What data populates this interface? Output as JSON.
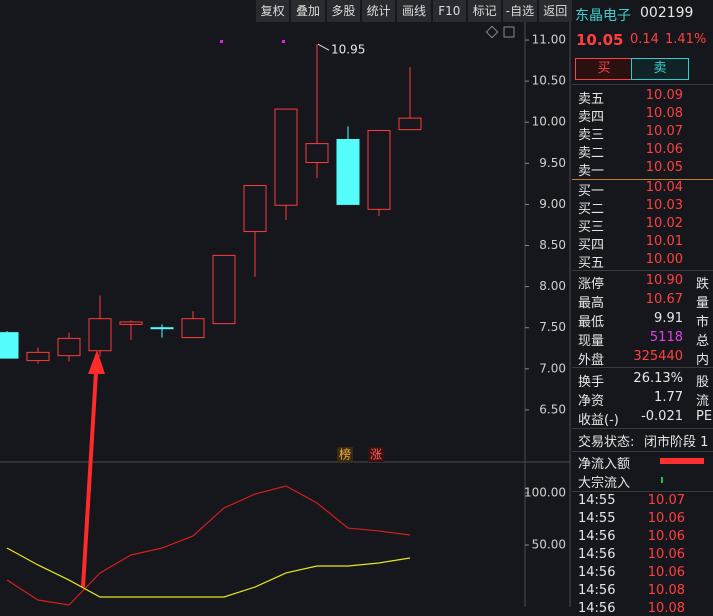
{
  "toolbar": [
    "复权",
    "叠加",
    "多股",
    "统计",
    "画线",
    "F10",
    "标记",
    "-自选",
    "返回"
  ],
  "chart_data": [
    {
      "type": "candlestick",
      "open": [
        7.44,
        7.1,
        7.16,
        7.22,
        7.54,
        7.5,
        7.38,
        7.55,
        8.67,
        8.99,
        9.51,
        9.79,
        8.94,
        9.91
      ],
      "close": [
        7.13,
        7.2,
        7.37,
        7.61,
        7.57,
        7.5,
        7.61,
        8.38,
        9.23,
        10.16,
        9.74,
        9.0,
        9.9,
        10.05
      ],
      "high": [
        7.46,
        7.26,
        7.44,
        7.89,
        7.59,
        7.54,
        7.7,
        8.38,
        9.23,
        10.16,
        10.95,
        9.95,
        9.9,
        10.67
      ],
      "low": [
        7.13,
        7.06,
        7.09,
        7.15,
        7.35,
        7.38,
        7.38,
        7.55,
        8.12,
        8.81,
        9.32,
        9.0,
        8.86,
        9.91
      ],
      "up_color": "#ff3b3b",
      "down_color": "#54fcfc",
      "ylim": [
        6.0,
        11.2
      ],
      "yticks": [
        {
          "value": 6.5,
          "label": "6.50"
        },
        {
          "value": 7,
          "label": "7.00"
        },
        {
          "value": 7.5,
          "label": "7.50"
        },
        {
          "value": 8,
          "label": "8.00"
        },
        {
          "value": 8.5,
          "label": "8.50"
        },
        {
          "value": 9,
          "label": "9.00"
        },
        {
          "value": 9.5,
          "label": "9.50"
        },
        {
          "value": 10,
          "label": "10.00"
        },
        {
          "value": 10.5,
          "label": "10.50"
        },
        {
          "value": 11,
          "label": "11.00"
        }
      ],
      "markers": [
        "榜",
        "涨"
      ]
    },
    {
      "type": "line",
      "series": [
        {
          "color": "#d41e1e",
          "values": [
            16.3,
            -2.9,
            -7.7,
            23.1,
            40.4,
            47.1,
            58.7,
            85.6,
            99.0,
            106.7,
            90.4,
            66.3,
            63.5,
            59.6
          ]
        },
        {
          "color": "#e6e61e",
          "values": [
            47.1,
            30.8,
            16.3,
            0,
            0,
            0,
            0,
            0,
            9.6,
            23.1,
            29.8,
            29.8,
            32.7,
            37.5
          ]
        }
      ],
      "ylim": [
        -10,
        130
      ],
      "yticks": [
        {
          "value": 50,
          "label": "50.00"
        },
        {
          "value": 100,
          "label": "100.00"
        }
      ]
    }
  ],
  "quote": {
    "name": "东晶电子",
    "code": "002199",
    "price": "10.05",
    "change": "0.14",
    "pct": "1.41%",
    "buy": "买",
    "sell": "卖",
    "asks": [
      {
        "label": "卖五",
        "price": "10.09"
      },
      {
        "label": "卖四",
        "price": "10.08"
      },
      {
        "label": "卖三",
        "price": "10.07"
      },
      {
        "label": "卖二",
        "price": "10.06"
      },
      {
        "label": "卖一",
        "price": "10.05"
      }
    ],
    "bids": [
      {
        "label": "买一",
        "price": "10.04"
      },
      {
        "label": "买二",
        "price": "10.03"
      },
      {
        "label": "买三",
        "price": "10.02"
      },
      {
        "label": "买四",
        "price": "10.01"
      },
      {
        "label": "买五",
        "price": "10.00"
      }
    ],
    "stats": [
      {
        "label": "涨停",
        "value": "10.90",
        "color": "#ff4040",
        "label2": "跌"
      },
      {
        "label": "最高",
        "value": "10.67",
        "color": "#ff4040",
        "label2": "量"
      },
      {
        "label": "最低",
        "value": "9.91",
        "color": "#e6e6e6",
        "label2": "市"
      },
      {
        "label": "现量",
        "value": "5118",
        "color": "#e040e0",
        "label2": "总"
      },
      {
        "label": "外盘",
        "value": "325440",
        "color": "#ff4040",
        "label2": "内"
      },
      {
        "label": "换手",
        "value": "26.13%",
        "color": "#e6e6e6",
        "label2": "股"
      },
      {
        "label": "净资",
        "value": "1.77",
        "color": "#e6e6e6",
        "label2": "流"
      },
      {
        "label": "收益(-)",
        "value": "-0.021",
        "color": "#e6e6e6",
        "label2": "PE"
      }
    ],
    "status_label": "交易状态:",
    "status": "闭市阶段 1",
    "flows": [
      "净流入额",
      "大宗流入"
    ],
    "ticks": [
      {
        "time": "14:55",
        "price": "10.07"
      },
      {
        "time": "14:55",
        "price": "10.06"
      },
      {
        "time": "14:56",
        "price": "10.06"
      },
      {
        "time": "14:56",
        "price": "10.06"
      },
      {
        "time": "14:56",
        "price": "10.06"
      },
      {
        "time": "14:56",
        "price": "10.08"
      },
      {
        "time": "14:56",
        "price": "10.08"
      }
    ]
  }
}
